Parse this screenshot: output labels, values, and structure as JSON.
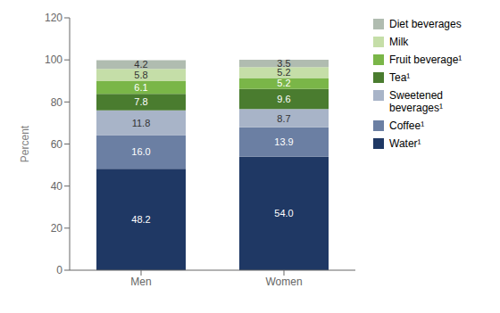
{
  "chart_data": {
    "type": "bar",
    "stacked": true,
    "data_labels": true,
    "legend": "right",
    "grid": false,
    "ylabel": "Percent",
    "categories": [
      "Men",
      "Women"
    ],
    "series": [
      {
        "name": "Water¹",
        "color": "#1f3864",
        "values": [
          48.2,
          54.0
        ],
        "value_labels": [
          "48.2",
          "54.0"
        ]
      },
      {
        "name": "Coffee¹",
        "color": "#6b7fa3",
        "values": [
          16.0,
          13.9
        ],
        "value_labels": [
          "16.0",
          "13.9"
        ]
      },
      {
        "name": "Sweetened\nbeverages¹",
        "color": "#a8b4c8",
        "values": [
          11.8,
          8.7
        ],
        "value_labels": [
          "11.8",
          "8.7"
        ]
      },
      {
        "name": "Tea¹",
        "color": "#4a7c2f",
        "values": [
          7.8,
          9.6
        ],
        "value_labels": [
          "7.8",
          "9.6"
        ]
      },
      {
        "name": "Fruit beverage¹",
        "color": "#7ab648",
        "values": [
          6.1,
          5.2
        ],
        "value_labels": [
          "6.1",
          "5.2"
        ]
      },
      {
        "name": "Milk",
        "color": "#c5dea8",
        "values": [
          5.8,
          5.2
        ],
        "value_labels": [
          "5.8",
          "5.2"
        ]
      },
      {
        "name": "Diet beverages",
        "color": "#b0bcb0",
        "values": [
          4.2,
          3.5
        ],
        "value_labels": [
          "4.2",
          "3.5"
        ]
      }
    ],
    "ylim": [
      0,
      120
    ],
    "yticks": [
      0,
      20,
      40,
      60,
      80,
      100,
      120
    ]
  }
}
